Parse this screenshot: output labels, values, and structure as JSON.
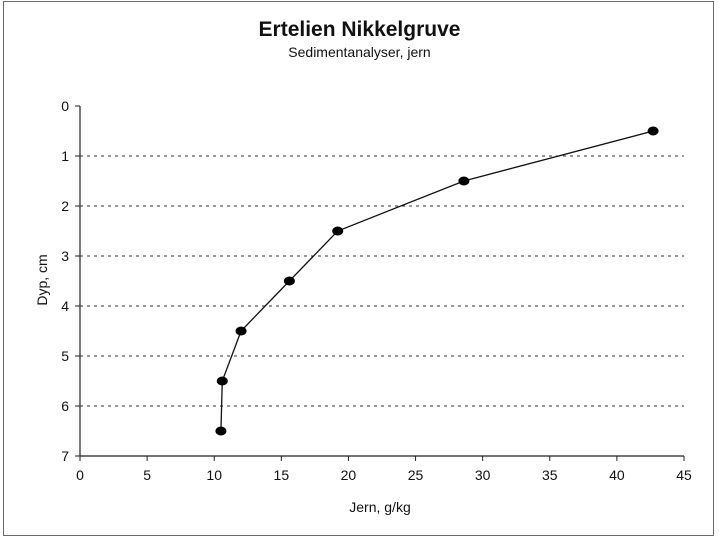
{
  "chart_data": {
    "type": "line",
    "title": "Ertelien Nikkelgruve",
    "subtitle": "Sedimentanalyser, jern",
    "xlabel": "Jern, g/kg",
    "ylabel": "Dyp, cm",
    "xlim": [
      0,
      45
    ],
    "ylim": [
      0,
      7
    ],
    "y_inverted": true,
    "x_ticks": [
      "0",
      "5",
      "10",
      "15",
      "20",
      "25",
      "30",
      "35",
      "40",
      "45"
    ],
    "y_ticks": [
      "0",
      "1",
      "2",
      "3",
      "4",
      "5",
      "6",
      "7"
    ],
    "grid": "horizontal dotted",
    "legend": "none",
    "series": [
      {
        "x": [
          42.7,
          28.6,
          19.2,
          15.6,
          12.0,
          10.6,
          10.5
        ],
        "y": [
          0.5,
          1.5,
          2.5,
          3.5,
          4.5,
          5.5,
          6.5
        ]
      }
    ]
  }
}
